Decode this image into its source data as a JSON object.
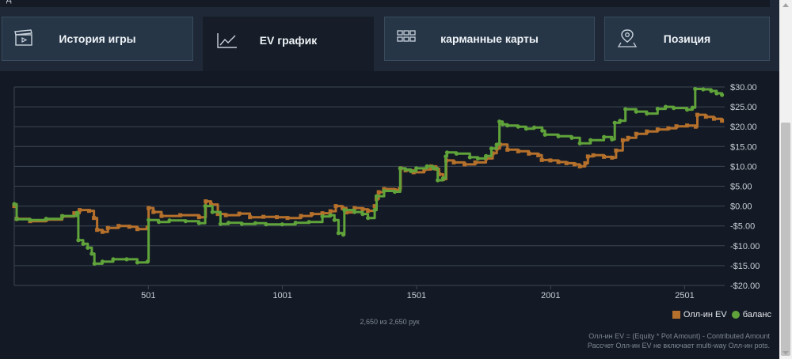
{
  "topbar": {
    "text": "д"
  },
  "tabs": [
    {
      "label": "История игры",
      "icon": "clapperboard-icon"
    },
    {
      "label": "EV график",
      "icon": "line-chart-icon"
    },
    {
      "label": "карманные карты",
      "icon": "grid-icon"
    },
    {
      "label": "Позиция",
      "icon": "location-pin-icon"
    }
  ],
  "colors": {
    "allin_ev": "#b5702b",
    "balance": "#5fa33a",
    "grid": "#3b4654",
    "axis_text": "#c9ced6"
  },
  "chart_data": {
    "type": "line",
    "title": "",
    "xlabel": "",
    "ylabel": "",
    "xlim": [
      1,
      2650
    ],
    "ylim": [
      -20,
      30
    ],
    "y_axis_position": "right",
    "grid": "horizontal",
    "x_ticks": [
      501,
      1001,
      1501,
      2001,
      2501
    ],
    "x_tick_labels": [
      "501",
      "1001",
      "1501",
      "2001",
      "2501"
    ],
    "y_ticks": [
      -20,
      -15,
      -10,
      -5,
      0,
      5,
      10,
      15,
      20,
      25,
      30
    ],
    "y_tick_labels": [
      "-$20.00",
      "-$15.00",
      "-$10.00",
      "-$5.00",
      "$0.00",
      "$5.00",
      "$10.00",
      "$15.00",
      "$20.00",
      "$25.00",
      "$30.00"
    ],
    "legend_position": "bottom-right",
    "series": [
      {
        "name": "Олл-ин EV",
        "color": "#b5702b",
        "points": [
          [
            1,
            0
          ],
          [
            10,
            -3.2
          ],
          [
            60,
            -3.8
          ],
          [
            120,
            -3.4
          ],
          [
            180,
            -2.6
          ],
          [
            225,
            -1.8
          ],
          [
            245,
            -1
          ],
          [
            280,
            -1.2
          ],
          [
            298,
            -3
          ],
          [
            310,
            -6
          ],
          [
            330,
            -6.5
          ],
          [
            350,
            -5.5
          ],
          [
            390,
            -5
          ],
          [
            430,
            -5.2
          ],
          [
            460,
            -5.8
          ],
          [
            498,
            -5.4
          ],
          [
            502,
            -0.5
          ],
          [
            520,
            -1.5
          ],
          [
            550,
            -2.5
          ],
          [
            620,
            -2.3
          ],
          [
            690,
            -2.8
          ],
          [
            715,
            1.2
          ],
          [
            735,
            0.4
          ],
          [
            760,
            -2
          ],
          [
            790,
            -2.3
          ],
          [
            840,
            -1.9
          ],
          [
            880,
            -2.8
          ],
          [
            930,
            -2.7
          ],
          [
            980,
            -2.8
          ],
          [
            1020,
            -3
          ],
          [
            1070,
            -2.5
          ],
          [
            1110,
            -2
          ],
          [
            1150,
            -1.8
          ],
          [
            1180,
            -1.3
          ],
          [
            1200,
            0
          ],
          [
            1225,
            -0.5
          ],
          [
            1240,
            -1.6
          ],
          [
            1270,
            -0.5
          ],
          [
            1300,
            -0.8
          ],
          [
            1320,
            -1.2
          ],
          [
            1345,
            0
          ],
          [
            1352,
            1.8
          ],
          [
            1360,
            3.5
          ],
          [
            1380,
            4.3
          ],
          [
            1420,
            4
          ],
          [
            1438,
            4.3
          ],
          [
            1442,
            9.5
          ],
          [
            1460,
            9
          ],
          [
            1490,
            8.5
          ],
          [
            1530,
            9.2
          ],
          [
            1555,
            10
          ],
          [
            1575,
            9.4
          ],
          [
            1585,
            8
          ],
          [
            1600,
            6.8
          ],
          [
            1612,
            11.5
          ],
          [
            1640,
            11
          ],
          [
            1680,
            10.5
          ],
          [
            1720,
            11
          ],
          [
            1760,
            12
          ],
          [
            1785,
            13.3
          ],
          [
            1800,
            14.5
          ],
          [
            1812,
            15.5
          ],
          [
            1840,
            14.2
          ],
          [
            1880,
            13.8
          ],
          [
            1920,
            13.2
          ],
          [
            1955,
            12.8
          ],
          [
            1968,
            11.6
          ],
          [
            2000,
            11.5
          ],
          [
            2030,
            11.1
          ],
          [
            2060,
            10.8
          ],
          [
            2090,
            10.5
          ],
          [
            2110,
            10
          ],
          [
            2130,
            10.8
          ],
          [
            2140,
            12.5
          ],
          [
            2160,
            12.8
          ],
          [
            2200,
            12.4
          ],
          [
            2230,
            12.2
          ],
          [
            2245,
            14
          ],
          [
            2270,
            16.6
          ],
          [
            2290,
            17.2
          ],
          [
            2320,
            18.2
          ],
          [
            2360,
            18.8
          ],
          [
            2400,
            19.3
          ],
          [
            2440,
            19.6
          ],
          [
            2470,
            20.1
          ],
          [
            2510,
            20.3
          ],
          [
            2542,
            20
          ],
          [
            2548,
            23
          ],
          [
            2580,
            22.5
          ],
          [
            2610,
            22
          ],
          [
            2640,
            21.5
          ]
        ]
      },
      {
        "name": "баланс",
        "color": "#5fa33a",
        "points": [
          [
            1,
            0.5
          ],
          [
            10,
            -3.3
          ],
          [
            60,
            -3.5
          ],
          [
            120,
            -3.2
          ],
          [
            180,
            -2.5
          ],
          [
            235,
            -1.7
          ],
          [
            240,
            -8.6
          ],
          [
            258,
            -9.5
          ],
          [
            275,
            -10.5
          ],
          [
            290,
            -12
          ],
          [
            300,
            -14.5
          ],
          [
            330,
            -14
          ],
          [
            370,
            -13.4
          ],
          [
            420,
            -13.4
          ],
          [
            460,
            -14.2
          ],
          [
            498,
            -14
          ],
          [
            502,
            -3.5
          ],
          [
            540,
            -4
          ],
          [
            580,
            -3.6
          ],
          [
            640,
            -3.8
          ],
          [
            690,
            -4.3
          ],
          [
            713,
            0
          ],
          [
            740,
            -1.5
          ],
          [
            770,
            -4.5
          ],
          [
            800,
            -4.2
          ],
          [
            850,
            -4.5
          ],
          [
            900,
            -4.3
          ],
          [
            940,
            -4.6
          ],
          [
            1000,
            -4.6
          ],
          [
            1050,
            -4.2
          ],
          [
            1100,
            -4
          ],
          [
            1150,
            -2.6
          ],
          [
            1180,
            -2.3
          ],
          [
            1195,
            -3.5
          ],
          [
            1210,
            -6.8
          ],
          [
            1228,
            -7.2
          ],
          [
            1232,
            -1
          ],
          [
            1270,
            -1.5
          ],
          [
            1300,
            -2
          ],
          [
            1320,
            -3
          ],
          [
            1345,
            -1
          ],
          [
            1352,
            2.5
          ],
          [
            1380,
            3.8
          ],
          [
            1420,
            3.6
          ],
          [
            1440,
            9.5
          ],
          [
            1460,
            9.2
          ],
          [
            1480,
            8.8
          ],
          [
            1500,
            9.5
          ],
          [
            1540,
            10
          ],
          [
            1565,
            9.5
          ],
          [
            1580,
            6.5
          ],
          [
            1600,
            7
          ],
          [
            1610,
            12.5
          ],
          [
            1615,
            13.5
          ],
          [
            1650,
            13.2
          ],
          [
            1700,
            12.3
          ],
          [
            1730,
            12
          ],
          [
            1760,
            12.6
          ],
          [
            1780,
            14.5
          ],
          [
            1800,
            15.5
          ],
          [
            1810,
            21.3
          ],
          [
            1822,
            20.6
          ],
          [
            1840,
            20.3
          ],
          [
            1880,
            20
          ],
          [
            1910,
            19.5
          ],
          [
            1940,
            19.8
          ],
          [
            1970,
            19
          ],
          [
            1980,
            18
          ],
          [
            2030,
            17.6
          ],
          [
            2080,
            17.2
          ],
          [
            2110,
            15.8
          ],
          [
            2150,
            16.6
          ],
          [
            2200,
            17.4
          ],
          [
            2230,
            16.8
          ],
          [
            2240,
            21
          ],
          [
            2260,
            21.5
          ],
          [
            2280,
            24.4
          ],
          [
            2320,
            23.8
          ],
          [
            2360,
            23.3
          ],
          [
            2400,
            24.5
          ],
          [
            2430,
            25
          ],
          [
            2460,
            24.7
          ],
          [
            2510,
            24.3
          ],
          [
            2530,
            24.8
          ],
          [
            2540,
            29.5
          ],
          [
            2570,
            29.4
          ],
          [
            2600,
            29
          ],
          [
            2620,
            28.4
          ],
          [
            2640,
            28
          ]
        ]
      }
    ]
  },
  "counter": "2,650 из 2,650 рук",
  "footnotes": [
    "Олл-ин EV = (Equity * Pot Amount) - Contributed Amount",
    "Рассчет Олл-ин EV не включает multi-way Олл-ин pots."
  ]
}
